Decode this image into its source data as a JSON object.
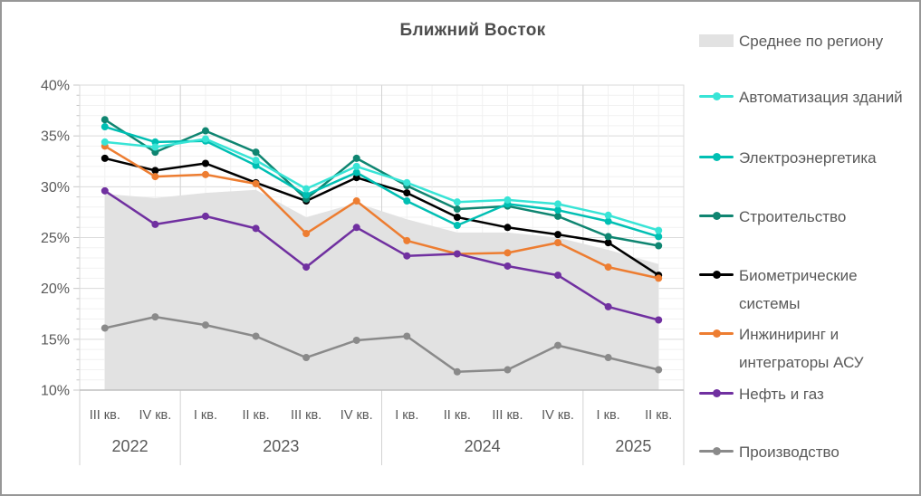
{
  "title": "Ближний Восток",
  "colors": {
    "background": "#ffffff",
    "text": "#595959",
    "title_text": "#4d4d4d",
    "grid_minor": "#f1f1f1",
    "grid_major": "#dadada",
    "axis_line": "#bfbfbf",
    "area_fill": "#e2e2e2"
  },
  "chart_data": {
    "type": "line",
    "title": "Ближний Восток",
    "unit": "%",
    "ylim": [
      10,
      40
    ],
    "grid": "major+minor",
    "legend_position": "right",
    "y_ticks": [
      {
        "v": 10,
        "label": "10%"
      },
      {
        "v": 15,
        "label": "15%"
      },
      {
        "v": 20,
        "label": "20%"
      },
      {
        "v": 25,
        "label": "25%"
      },
      {
        "v": 30,
        "label": "30%"
      },
      {
        "v": 35,
        "label": "35%"
      },
      {
        "v": 40,
        "label": "40%"
      }
    ],
    "x_groups": [
      {
        "year": "2022",
        "quarters": [
          "III кв.",
          "IV кв."
        ]
      },
      {
        "year": "2023",
        "quarters": [
          "I кв.",
          "II кв.",
          "III кв.",
          "IV кв."
        ]
      },
      {
        "year": "2024",
        "quarters": [
          "I кв.",
          "II кв.",
          "III кв.",
          "IV кв."
        ]
      },
      {
        "year": "2025",
        "quarters": [
          "I кв.",
          "II кв."
        ]
      }
    ],
    "categories": [
      "III кв. 2022",
      "IV кв. 2022",
      "I кв. 2023",
      "II кв. 2023",
      "III кв. 2023",
      "IV кв. 2023",
      "I кв. 2024",
      "II кв. 2024",
      "III кв. 2024",
      "IV кв. 2024",
      "I кв. 2025",
      "II кв. 2025"
    ],
    "series": [
      {
        "name": "Среднее по региону",
        "type": "area",
        "color": "#e2e2e2",
        "values": [
          29.3,
          28.9,
          29.4,
          29.7,
          27.0,
          28.4,
          26.8,
          25.5,
          25.5,
          25.0,
          23.8,
          22.4
        ]
      },
      {
        "name": "Автоматизация зданий",
        "type": "line",
        "color": "#38e4d6",
        "values": [
          34.4,
          33.9,
          34.7,
          32.6,
          29.8,
          32.0,
          30.4,
          28.5,
          28.7,
          28.3,
          27.2,
          25.7
        ]
      },
      {
        "name": "Электроэнергетика",
        "type": "line",
        "color": "#00bfb3",
        "values": [
          35.9,
          34.4,
          34.5,
          32.1,
          29.2,
          31.4,
          28.6,
          26.2,
          28.3,
          27.7,
          26.6,
          25.1
        ]
      },
      {
        "name": "Строительство",
        "type": "line",
        "color": "#0f8571",
        "values": [
          36.6,
          33.4,
          35.5,
          33.4,
          28.8,
          32.8,
          30.1,
          27.8,
          28.1,
          27.1,
          25.1,
          24.2
        ]
      },
      {
        "name": "Биометрические системы",
        "type": "line",
        "color": "#000000",
        "values": [
          32.8,
          31.6,
          32.3,
          30.4,
          28.6,
          30.9,
          29.4,
          27.0,
          26.0,
          25.3,
          24.5,
          21.3
        ]
      },
      {
        "name": "Инжиниринг и интеграторы АСУ",
        "type": "line",
        "color": "#ed7d31",
        "values": [
          34.0,
          31.0,
          31.2,
          30.3,
          25.4,
          28.6,
          24.7,
          23.4,
          23.5,
          24.5,
          22.1,
          21.0
        ]
      },
      {
        "name": "Нефть и газ",
        "type": "line",
        "color": "#7030a0",
        "values": [
          29.6,
          26.3,
          27.1,
          25.9,
          22.1,
          26.0,
          23.2,
          23.4,
          22.2,
          21.3,
          18.2,
          16.9
        ]
      },
      {
        "name": "Производство",
        "type": "line",
        "color": "#8a8a8a",
        "values": [
          16.1,
          17.2,
          16.4,
          15.3,
          13.2,
          14.9,
          15.3,
          11.8,
          12.0,
          14.4,
          13.2,
          12.0
        ]
      }
    ],
    "draw_order": [
      0,
      7,
      4,
      5,
      6,
      3,
      2,
      1
    ]
  }
}
